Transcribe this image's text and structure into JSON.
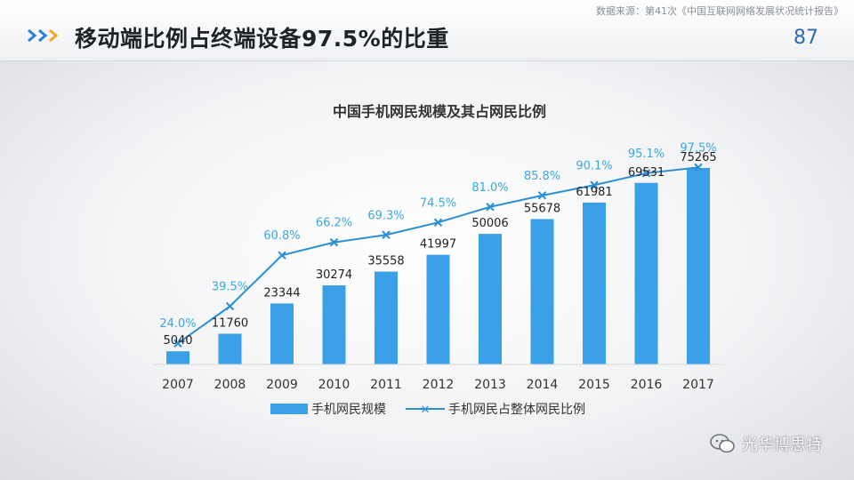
{
  "header": {
    "title": "移动端比例占终端设备97.5%的比重",
    "source": "数据来源：第41次《中国互联网网络发展状况统计报告》",
    "page_number": "87"
  },
  "watermark": {
    "text": "光华博思特",
    "icon": "wechat-icon"
  },
  "colors": {
    "bar": "#3aa0e8",
    "line": "#2b8fd6",
    "pct_label": "#3aa8e0",
    "accent_arrow": "#2a7fd4",
    "accent_arrow2": "#f5a623"
  },
  "chart_data": {
    "type": "bar",
    "title": "中国手机网民规模及其占网民比例",
    "categories": [
      "2007",
      "2008",
      "2009",
      "2010",
      "2011",
      "2012",
      "2013",
      "2014",
      "2015",
      "2016",
      "2017"
    ],
    "series": [
      {
        "name": "手机网民规模",
        "type": "bar",
        "values": [
          5040,
          11760,
          23344,
          30274,
          35558,
          41997,
          50006,
          55678,
          61981,
          69531,
          75265
        ]
      },
      {
        "name": "手机网民占整体网民比例",
        "type": "line",
        "values": [
          24.0,
          39.5,
          60.8,
          66.2,
          69.3,
          74.5,
          81.0,
          85.8,
          90.1,
          95.1,
          97.5
        ],
        "labels": [
          "24.0%",
          "39.5%",
          "60.8%",
          "66.2%",
          "69.3%",
          "74.5%",
          "81.0%",
          "85.8%",
          "90.1%",
          "95.1%",
          "97.5%"
        ]
      }
    ],
    "bar_ylim": [
      0,
      80000
    ],
    "line_ylim": [
      0,
      100
    ],
    "grid": false,
    "legend": "bottom"
  }
}
